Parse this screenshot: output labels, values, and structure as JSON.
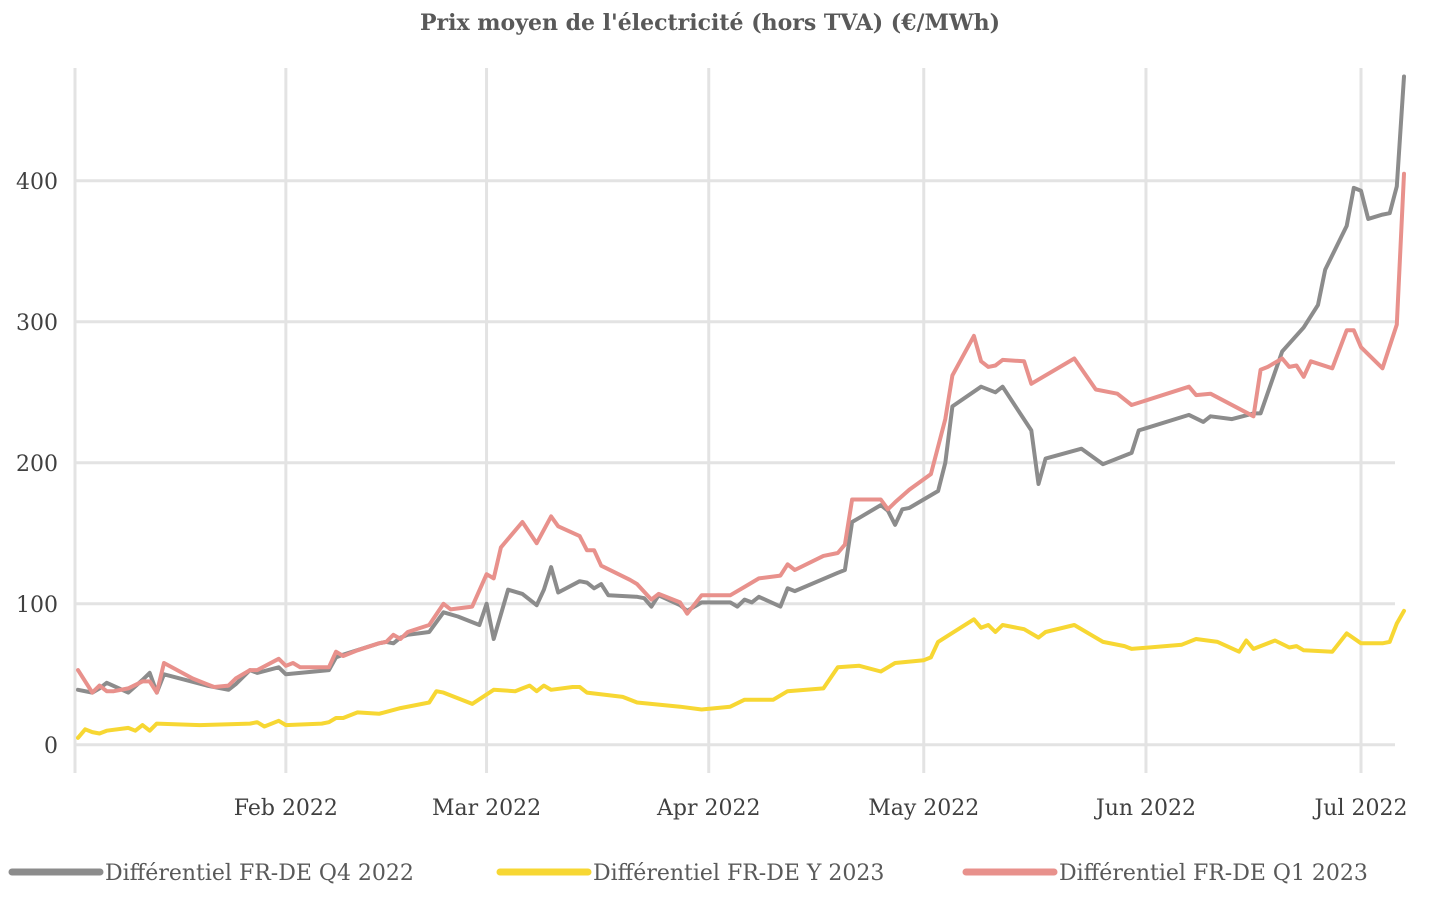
{
  "chart_data": {
    "type": "line",
    "title": "Prix moyen de l'électricité (hors TVA) (€/MWh)",
    "xlabel": "",
    "ylabel": "",
    "x_range": [
      "2022-01-03",
      "2022-07-07"
    ],
    "ylim": [
      -20,
      480
    ],
    "y_ticks": [
      0,
      100,
      200,
      300,
      400
    ],
    "x_ticks": [
      {
        "date": "2022-02-01",
        "label": "Feb 2022"
      },
      {
        "date": "2022-03-01",
        "label": "Mar 2022"
      },
      {
        "date": "2022-04-01",
        "label": "Apr 2022"
      },
      {
        "date": "2022-05-01",
        "label": "May 2022"
      },
      {
        "date": "2022-06-01",
        "label": "Jun 2022"
      },
      {
        "date": "2022-07-01",
        "label": "Jul 2022"
      }
    ],
    "grid": true,
    "legend_position": "bottom",
    "series": [
      {
        "name": "Différentiel FR-DE Q4 2022",
        "color": "#8c8c8c",
        "points": [
          [
            "2022-01-03",
            39
          ],
          [
            "2022-01-05",
            37
          ],
          [
            "2022-01-06",
            40
          ],
          [
            "2022-01-07",
            44
          ],
          [
            "2022-01-10",
            37
          ],
          [
            "2022-01-12",
            46
          ],
          [
            "2022-01-13",
            51
          ],
          [
            "2022-01-14",
            37
          ],
          [
            "2022-01-15",
            50
          ],
          [
            "2022-01-21",
            42
          ],
          [
            "2022-01-24",
            39
          ],
          [
            "2022-01-25",
            43
          ],
          [
            "2022-01-26",
            48
          ],
          [
            "2022-01-27",
            53
          ],
          [
            "2022-01-28",
            51
          ],
          [
            "2022-01-31",
            55
          ],
          [
            "2022-02-01",
            50
          ],
          [
            "2022-02-07",
            53
          ],
          [
            "2022-02-08",
            62
          ],
          [
            "2022-02-09",
            64
          ],
          [
            "2022-02-14",
            72
          ],
          [
            "2022-02-15",
            73
          ],
          [
            "2022-02-16",
            72
          ],
          [
            "2022-02-17",
            76
          ],
          [
            "2022-02-18",
            78
          ],
          [
            "2022-02-21",
            80
          ],
          [
            "2022-02-23",
            94
          ],
          [
            "2022-02-25",
            91
          ],
          [
            "2022-02-28",
            85
          ],
          [
            "2022-03-01",
            100
          ],
          [
            "2022-03-02",
            75
          ],
          [
            "2022-03-04",
            110
          ],
          [
            "2022-03-06",
            107
          ],
          [
            "2022-03-08",
            99
          ],
          [
            "2022-03-09",
            110
          ],
          [
            "2022-03-10",
            126
          ],
          [
            "2022-03-11",
            108
          ],
          [
            "2022-03-14",
            116
          ],
          [
            "2022-03-15",
            115
          ],
          [
            "2022-03-16",
            111
          ],
          [
            "2022-03-17",
            114
          ],
          [
            "2022-03-18",
            106
          ],
          [
            "2022-03-22",
            105
          ],
          [
            "2022-03-23",
            104
          ],
          [
            "2022-03-24",
            98
          ],
          [
            "2022-03-25",
            106
          ],
          [
            "2022-03-28",
            99
          ],
          [
            "2022-03-29",
            95
          ],
          [
            "2022-03-31",
            101
          ],
          [
            "2022-04-04",
            101
          ],
          [
            "2022-04-05",
            98
          ],
          [
            "2022-04-06",
            103
          ],
          [
            "2022-04-07",
            101
          ],
          [
            "2022-04-08",
            105
          ],
          [
            "2022-04-11",
            98
          ],
          [
            "2022-04-12",
            111
          ],
          [
            "2022-04-13",
            109
          ],
          [
            "2022-04-19",
            122
          ],
          [
            "2022-04-20",
            124
          ],
          [
            "2022-04-21",
            158
          ],
          [
            "2022-04-22",
            161
          ],
          [
            "2022-04-25",
            170
          ],
          [
            "2022-04-26",
            166
          ],
          [
            "2022-04-27",
            156
          ],
          [
            "2022-04-28",
            167
          ],
          [
            "2022-04-29",
            168
          ],
          [
            "2022-05-03",
            180
          ],
          [
            "2022-05-04",
            200
          ],
          [
            "2022-05-05",
            240
          ],
          [
            "2022-05-09",
            254
          ],
          [
            "2022-05-11",
            250
          ],
          [
            "2022-05-12",
            254
          ],
          [
            "2022-05-16",
            223
          ],
          [
            "2022-05-17",
            185
          ],
          [
            "2022-05-18",
            203
          ],
          [
            "2022-05-23",
            210
          ],
          [
            "2022-05-26",
            199
          ],
          [
            "2022-05-30",
            207
          ],
          [
            "2022-05-31",
            223
          ],
          [
            "2022-06-07",
            234
          ],
          [
            "2022-06-09",
            229
          ],
          [
            "2022-06-10",
            233
          ],
          [
            "2022-06-13",
            231
          ],
          [
            "2022-06-16",
            235
          ],
          [
            "2022-06-17",
            235
          ],
          [
            "2022-06-20",
            279
          ],
          [
            "2022-06-23",
            296
          ],
          [
            "2022-06-25",
            312
          ],
          [
            "2022-06-26",
            337
          ],
          [
            "2022-06-29",
            368
          ],
          [
            "2022-06-30",
            395
          ],
          [
            "2022-07-01",
            393
          ],
          [
            "2022-07-02",
            373
          ],
          [
            "2022-07-04",
            376
          ],
          [
            "2022-07-05",
            377
          ],
          [
            "2022-07-06",
            396
          ],
          [
            "2022-07-07",
            474
          ]
        ]
      },
      {
        "name": "Différentiel FR-DE Y 2023",
        "color": "#f7d733",
        "points": [
          [
            "2022-01-03",
            5
          ],
          [
            "2022-01-04",
            11
          ],
          [
            "2022-01-05",
            9
          ],
          [
            "2022-01-06",
            8
          ],
          [
            "2022-01-07",
            10
          ],
          [
            "2022-01-10",
            12
          ],
          [
            "2022-01-11",
            10
          ],
          [
            "2022-01-12",
            14
          ],
          [
            "2022-01-13",
            10
          ],
          [
            "2022-01-14",
            15
          ],
          [
            "2022-01-20",
            14
          ],
          [
            "2022-01-27",
            15
          ],
          [
            "2022-01-28",
            16
          ],
          [
            "2022-01-29",
            13
          ],
          [
            "2022-01-31",
            17
          ],
          [
            "2022-02-01",
            14
          ],
          [
            "2022-02-06",
            15
          ],
          [
            "2022-02-07",
            16
          ],
          [
            "2022-02-08",
            19
          ],
          [
            "2022-02-09",
            19
          ],
          [
            "2022-02-11",
            23
          ],
          [
            "2022-02-14",
            22
          ],
          [
            "2022-02-17",
            26
          ],
          [
            "2022-02-21",
            30
          ],
          [
            "2022-02-22",
            38
          ],
          [
            "2022-02-23",
            37
          ],
          [
            "2022-02-27",
            29
          ],
          [
            "2022-03-02",
            39
          ],
          [
            "2022-03-05",
            38
          ],
          [
            "2022-03-06",
            40
          ],
          [
            "2022-03-07",
            42
          ],
          [
            "2022-03-08",
            38
          ],
          [
            "2022-03-09",
            42
          ],
          [
            "2022-03-10",
            39
          ],
          [
            "2022-03-13",
            41
          ],
          [
            "2022-03-14",
            41
          ],
          [
            "2022-03-15",
            37
          ],
          [
            "2022-03-20",
            34
          ],
          [
            "2022-03-22",
            30
          ],
          [
            "2022-03-28",
            27
          ],
          [
            "2022-03-31",
            25
          ],
          [
            "2022-04-04",
            27
          ],
          [
            "2022-04-06",
            32
          ],
          [
            "2022-04-10",
            32
          ],
          [
            "2022-04-12",
            38
          ],
          [
            "2022-04-17",
            40
          ],
          [
            "2022-04-19",
            55
          ],
          [
            "2022-04-22",
            56
          ],
          [
            "2022-04-25",
            52
          ],
          [
            "2022-04-27",
            58
          ],
          [
            "2022-05-01",
            60
          ],
          [
            "2022-05-02",
            62
          ],
          [
            "2022-05-03",
            73
          ],
          [
            "2022-05-08",
            89
          ],
          [
            "2022-05-09",
            83
          ],
          [
            "2022-05-10",
            85
          ],
          [
            "2022-05-11",
            80
          ],
          [
            "2022-05-12",
            85
          ],
          [
            "2022-05-15",
            82
          ],
          [
            "2022-05-17",
            76
          ],
          [
            "2022-05-18",
            80
          ],
          [
            "2022-05-22",
            85
          ],
          [
            "2022-05-26",
            73
          ],
          [
            "2022-05-29",
            70
          ],
          [
            "2022-05-30",
            68
          ],
          [
            "2022-06-06",
            71
          ],
          [
            "2022-06-08",
            75
          ],
          [
            "2022-06-11",
            73
          ],
          [
            "2022-06-14",
            66
          ],
          [
            "2022-06-15",
            74
          ],
          [
            "2022-06-16",
            68
          ],
          [
            "2022-06-19",
            74
          ],
          [
            "2022-06-21",
            69
          ],
          [
            "2022-06-22",
            70
          ],
          [
            "2022-06-23",
            67
          ],
          [
            "2022-06-27",
            66
          ],
          [
            "2022-06-29",
            79
          ],
          [
            "2022-07-01",
            72
          ],
          [
            "2022-07-04",
            72
          ],
          [
            "2022-07-05",
            73
          ],
          [
            "2022-07-06",
            86
          ],
          [
            "2022-07-07",
            95
          ]
        ]
      },
      {
        "name": "Différentiel FR-DE Q1 2023",
        "color": "#e8918c",
        "points": [
          [
            "2022-01-03",
            53
          ],
          [
            "2022-01-05",
            37
          ],
          [
            "2022-01-06",
            42
          ],
          [
            "2022-01-07",
            38
          ],
          [
            "2022-01-08",
            38
          ],
          [
            "2022-01-10",
            40
          ],
          [
            "2022-01-12",
            45
          ],
          [
            "2022-01-13",
            45
          ],
          [
            "2022-01-14",
            37
          ],
          [
            "2022-01-15",
            58
          ],
          [
            "2022-01-19",
            47
          ],
          [
            "2022-01-21",
            43
          ],
          [
            "2022-01-22",
            41
          ],
          [
            "2022-01-24",
            42
          ],
          [
            "2022-01-25",
            47
          ],
          [
            "2022-01-27",
            53
          ],
          [
            "2022-01-28",
            53
          ],
          [
            "2022-01-31",
            61
          ],
          [
            "2022-02-01",
            56
          ],
          [
            "2022-02-02",
            58
          ],
          [
            "2022-02-03",
            55
          ],
          [
            "2022-02-07",
            55
          ],
          [
            "2022-02-08",
            66
          ],
          [
            "2022-02-09",
            63
          ],
          [
            "2022-02-11",
            67
          ],
          [
            "2022-02-14",
            72
          ],
          [
            "2022-02-15",
            73
          ],
          [
            "2022-02-16",
            78
          ],
          [
            "2022-02-17",
            75
          ],
          [
            "2022-02-18",
            80
          ],
          [
            "2022-02-21",
            85
          ],
          [
            "2022-02-23",
            100
          ],
          [
            "2022-02-24",
            96
          ],
          [
            "2022-02-27",
            98
          ],
          [
            "2022-03-01",
            121
          ],
          [
            "2022-03-02",
            118
          ],
          [
            "2022-03-03",
            140
          ],
          [
            "2022-03-06",
            158
          ],
          [
            "2022-03-08",
            143
          ],
          [
            "2022-03-10",
            162
          ],
          [
            "2022-03-11",
            155
          ],
          [
            "2022-03-14",
            148
          ],
          [
            "2022-03-15",
            138
          ],
          [
            "2022-03-16",
            138
          ],
          [
            "2022-03-17",
            127
          ],
          [
            "2022-03-21",
            117
          ],
          [
            "2022-03-22",
            114
          ],
          [
            "2022-03-24",
            103
          ],
          [
            "2022-03-25",
            107
          ],
          [
            "2022-03-28",
            101
          ],
          [
            "2022-03-29",
            93
          ],
          [
            "2022-03-31",
            106
          ],
          [
            "2022-04-04",
            106
          ],
          [
            "2022-04-06",
            112
          ],
          [
            "2022-04-08",
            118
          ],
          [
            "2022-04-11",
            120
          ],
          [
            "2022-04-12",
            128
          ],
          [
            "2022-04-13",
            124
          ],
          [
            "2022-04-17",
            134
          ],
          [
            "2022-04-19",
            136
          ],
          [
            "2022-04-20",
            142
          ],
          [
            "2022-04-21",
            174
          ],
          [
            "2022-04-25",
            174
          ],
          [
            "2022-04-26",
            167
          ],
          [
            "2022-04-27",
            172
          ],
          [
            "2022-04-29",
            181
          ],
          [
            "2022-05-02",
            192
          ],
          [
            "2022-05-04",
            231
          ],
          [
            "2022-05-05",
            262
          ],
          [
            "2022-05-08",
            290
          ],
          [
            "2022-05-09",
            272
          ],
          [
            "2022-05-10",
            268
          ],
          [
            "2022-05-11",
            269
          ],
          [
            "2022-05-12",
            273
          ],
          [
            "2022-05-15",
            272
          ],
          [
            "2022-05-16",
            256
          ],
          [
            "2022-05-22",
            274
          ],
          [
            "2022-05-25",
            252
          ],
          [
            "2022-05-28",
            249
          ],
          [
            "2022-05-30",
            241
          ],
          [
            "2022-06-07",
            254
          ],
          [
            "2022-06-08",
            248
          ],
          [
            "2022-06-10",
            249
          ],
          [
            "2022-06-16",
            233
          ],
          [
            "2022-06-17",
            266
          ],
          [
            "2022-06-18",
            268
          ],
          [
            "2022-06-20",
            274
          ],
          [
            "2022-06-21",
            268
          ],
          [
            "2022-06-22",
            269
          ],
          [
            "2022-06-23",
            261
          ],
          [
            "2022-06-24",
            272
          ],
          [
            "2022-06-27",
            267
          ],
          [
            "2022-06-29",
            294
          ],
          [
            "2022-06-30",
            294
          ],
          [
            "2022-07-01",
            282
          ],
          [
            "2022-07-04",
            267
          ],
          [
            "2022-07-06",
            298
          ],
          [
            "2022-07-07",
            405
          ]
        ]
      }
    ]
  }
}
